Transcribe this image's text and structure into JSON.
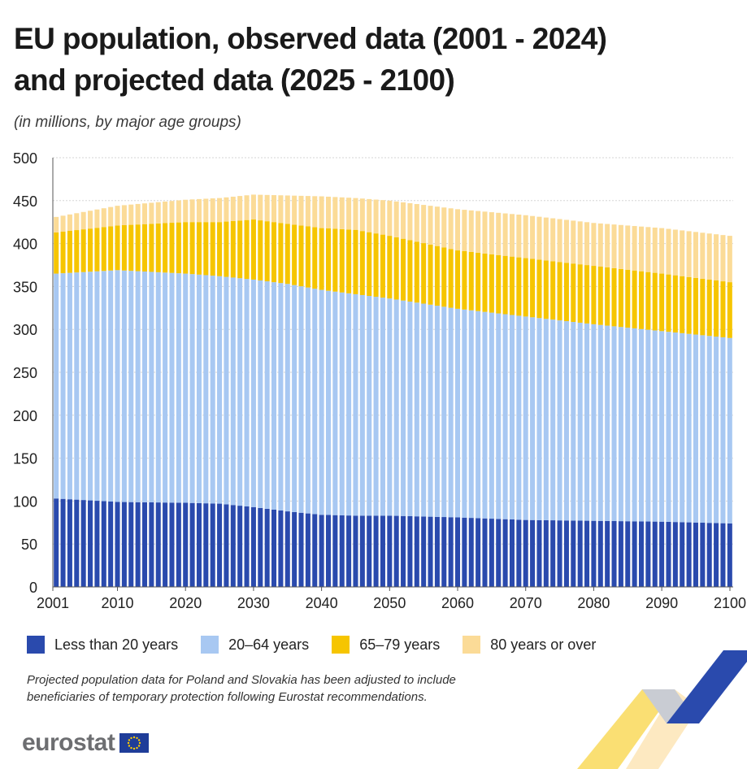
{
  "title_line1": "EU population, observed data (2001 - 2024)",
  "title_line2": "and projected data (2025 - 2100)",
  "subtitle": "(in millions, by major age groups)",
  "note": "Projected population data for Poland and Slovakia has been adjusted to include beneficiaries of temporary protection following Eurostat recommendations.",
  "logo_text": "eurostat",
  "logo_flag_icon": "eu-flag-icon",
  "colors": {
    "under20": "#2a4aad",
    "age20_64": "#a8c8f2",
    "age65_79": "#f6c500",
    "age80plus": "#fbdb97",
    "grid": "#d6d6d6",
    "axis": "#555555"
  },
  "chart_data": {
    "type": "bar",
    "stacked": true,
    "x_start": 2001,
    "x_end": 2100,
    "x_ticks": [
      2001,
      2010,
      2020,
      2030,
      2040,
      2050,
      2060,
      2070,
      2080,
      2090,
      2100
    ],
    "y_ticks": [
      0,
      50,
      100,
      150,
      200,
      250,
      300,
      350,
      400,
      450,
      500
    ],
    "ylim": [
      0,
      500
    ],
    "grid": true,
    "legend_position": "bottom",
    "series": [
      {
        "name": "Less than 20 years",
        "color": "#2a4aad",
        "anchors": [
          [
            2001,
            103
          ],
          [
            2010,
            99
          ],
          [
            2020,
            98
          ],
          [
            2025,
            97
          ],
          [
            2030,
            93
          ],
          [
            2035,
            88
          ],
          [
            2040,
            84
          ],
          [
            2045,
            83
          ],
          [
            2050,
            83
          ],
          [
            2060,
            81
          ],
          [
            2070,
            78
          ],
          [
            2080,
            77
          ],
          [
            2090,
            76
          ],
          [
            2100,
            74
          ]
        ]
      },
      {
        "name": "20–64 years",
        "color": "#a8c8f2",
        "anchors": [
          [
            2001,
            262
          ],
          [
            2010,
            270
          ],
          [
            2020,
            267
          ],
          [
            2025,
            265
          ],
          [
            2030,
            265
          ],
          [
            2035,
            265
          ],
          [
            2040,
            262
          ],
          [
            2045,
            258
          ],
          [
            2050,
            253
          ],
          [
            2060,
            243
          ],
          [
            2070,
            237
          ],
          [
            2080,
            229
          ],
          [
            2090,
            222
          ],
          [
            2100,
            216
          ]
        ]
      },
      {
        "name": "65–79 years",
        "color": "#f6c500",
        "anchors": [
          [
            2001,
            48
          ],
          [
            2010,
            52
          ],
          [
            2020,
            60
          ],
          [
            2025,
            63
          ],
          [
            2030,
            70
          ],
          [
            2035,
            70
          ],
          [
            2040,
            72
          ],
          [
            2045,
            75
          ],
          [
            2050,
            73
          ],
          [
            2060,
            68
          ],
          [
            2070,
            68
          ],
          [
            2080,
            68
          ],
          [
            2090,
            67
          ],
          [
            2100,
            65
          ]
        ]
      },
      {
        "name": "80 years or over",
        "color": "#fbdb97",
        "anchors": [
          [
            2001,
            18
          ],
          [
            2010,
            23
          ],
          [
            2020,
            26
          ],
          [
            2025,
            28
          ],
          [
            2030,
            29
          ],
          [
            2035,
            33
          ],
          [
            2040,
            37
          ],
          [
            2045,
            37
          ],
          [
            2050,
            41
          ],
          [
            2060,
            48
          ],
          [
            2070,
            50
          ],
          [
            2080,
            50
          ],
          [
            2090,
            53
          ],
          [
            2100,
            54
          ]
        ]
      }
    ]
  }
}
